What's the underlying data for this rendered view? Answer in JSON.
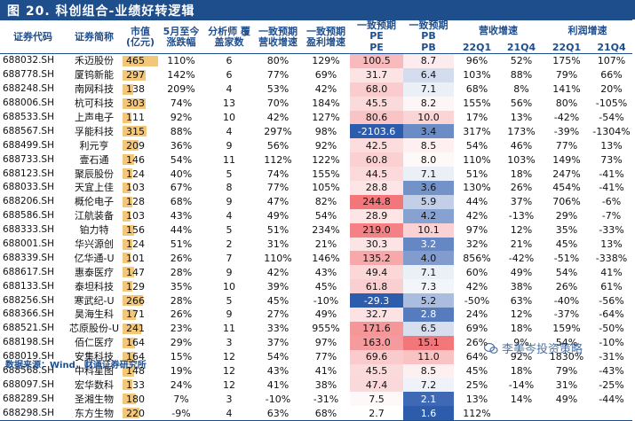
{
  "title": "图 20.  科创组合-业绩好转逻辑",
  "headers": {
    "code": "证券代码",
    "name": "证券简称",
    "mv": "市值 (亿元)",
    "may_chg": "5月至今 涨跌幅",
    "analysts": "分析师 覆盖家数",
    "rev_growth": "一致预期 营收增速",
    "profit_growth": "一致预期 盈利增速",
    "pe": "一致预期 PE",
    "pb": "一致预期 PB",
    "rev_group": "营收增速",
    "profit_group": "利润增速",
    "q1": "22Q1",
    "q4": "21Q4",
    "pe_short": "PE",
    "pb_short": "PB"
  },
  "rows": [
    {
      "code": "688032.SH",
      "name": "禾迈股份",
      "mv": "465",
      "chg": "110%",
      "an": "6",
      "rg": "80%",
      "pg": "129%",
      "pe": "100.5",
      "pb": "8.7",
      "rq1": "96%",
      "rq4": "52%",
      "pq1": "175%",
      "pq4": "107%"
    },
    {
      "code": "688778.SH",
      "name": "厦钨新能",
      "mv": "297",
      "chg": "142%",
      "an": "6",
      "rg": "77%",
      "pg": "69%",
      "pe": "31.7",
      "pb": "6.4",
      "rq1": "103%",
      "rq4": "88%",
      "pq1": "79%",
      "pq4": "66%"
    },
    {
      "code": "688248.SH",
      "name": "南网科技",
      "mv": "138",
      "chg": "209%",
      "an": "4",
      "rg": "53%",
      "pg": "42%",
      "pe": "68.0",
      "pb": "7.1",
      "rq1": "68%",
      "rq4": "8%",
      "pq1": "141%",
      "pq4": "20%"
    },
    {
      "code": "688006.SH",
      "name": "杭可科技",
      "mv": "303",
      "chg": "74%",
      "an": "13",
      "rg": "70%",
      "pg": "184%",
      "pe": "45.5",
      "pb": "8.2",
      "rq1": "155%",
      "rq4": "56%",
      "pq1": "80%",
      "pq4": "-105%"
    },
    {
      "code": "688533.SH",
      "name": "上声电子",
      "mv": "111",
      "chg": "92%",
      "an": "10",
      "rg": "42%",
      "pg": "127%",
      "pe": "80.6",
      "pb": "10.0",
      "rq1": "17%",
      "rq4": "13%",
      "pq1": "-42%",
      "pq4": "-54%"
    },
    {
      "code": "688567.SH",
      "name": "孚能科技",
      "mv": "315",
      "chg": "88%",
      "an": "4",
      "rg": "297%",
      "pg": "98%",
      "pe": "-2103.6",
      "pb": "3.4",
      "rq1": "317%",
      "rq4": "173%",
      "pq1": "-39%",
      "pq4": "-1304%"
    },
    {
      "code": "688499.SH",
      "name": "利元亨",
      "mv": "209",
      "chg": "36%",
      "an": "9",
      "rg": "56%",
      "pg": "92%",
      "pe": "42.5",
      "pb": "8.5",
      "rq1": "54%",
      "rq4": "46%",
      "pq1": "77%",
      "pq4": "13%"
    },
    {
      "code": "688733.SH",
      "name": "壹石通",
      "mv": "146",
      "chg": "54%",
      "an": "11",
      "rg": "112%",
      "pg": "122%",
      "pe": "60.8",
      "pb": "8.0",
      "rq1": "110%",
      "rq4": "103%",
      "pq1": "149%",
      "pq4": "73%"
    },
    {
      "code": "688123.SH",
      "name": "聚辰股份",
      "mv": "124",
      "chg": "40%",
      "an": "5",
      "rg": "74%",
      "pg": "155%",
      "pe": "44.5",
      "pb": "7.1",
      "rq1": "51%",
      "rq4": "18%",
      "pq1": "247%",
      "pq4": "-41%"
    },
    {
      "code": "688033.SH",
      "name": "天宜上佳",
      "mv": "103",
      "chg": "67%",
      "an": "8",
      "rg": "77%",
      "pg": "105%",
      "pe": "28.8",
      "pb": "3.6",
      "rq1": "130%",
      "rq4": "26%",
      "pq1": "454%",
      "pq4": "-41%"
    },
    {
      "code": "688206.SH",
      "name": "概伦电子",
      "mv": "128",
      "chg": "68%",
      "an": "9",
      "rg": "47%",
      "pg": "82%",
      "pe": "244.8",
      "pb": "5.9",
      "rq1": "44%",
      "rq4": "37%",
      "pq1": "706%",
      "pq4": "-6%"
    },
    {
      "code": "688586.SH",
      "name": "江航装备",
      "mv": "103",
      "chg": "43%",
      "an": "4",
      "rg": "49%",
      "pg": "54%",
      "pe": "28.9",
      "pb": "4.2",
      "rq1": "42%",
      "rq4": "-13%",
      "pq1": "29%",
      "pq4": "-7%"
    },
    {
      "code": "688333.SH",
      "name": "铂力特",
      "mv": "156",
      "chg": "44%",
      "an": "5",
      "rg": "51%",
      "pg": "234%",
      "pe": "219.0",
      "pb": "10.1",
      "rq1": "97%",
      "rq4": "12%",
      "pq1": "35%",
      "pq4": "-33%"
    },
    {
      "code": "688001.SH",
      "name": "华兴源创",
      "mv": "124",
      "chg": "51%",
      "an": "2",
      "rg": "31%",
      "pg": "21%",
      "pe": "30.3",
      "pb": "3.2",
      "rq1": "32%",
      "rq4": "21%",
      "pq1": "45%",
      "pq4": "13%"
    },
    {
      "code": "688339.SH",
      "name": "亿华通-U",
      "mv": "101",
      "chg": "26%",
      "an": "7",
      "rg": "110%",
      "pg": "146%",
      "pe": "135.2",
      "pb": "4.0",
      "rq1": "856%",
      "rq4": "-42%",
      "pq1": "-51%",
      "pq4": "-338%"
    },
    {
      "code": "688617.SH",
      "name": "惠泰医疗",
      "mv": "147",
      "chg": "28%",
      "an": "9",
      "rg": "42%",
      "pg": "43%",
      "pe": "49.4",
      "pb": "7.1",
      "rq1": "60%",
      "rq4": "49%",
      "pq1": "54%",
      "pq4": "41%"
    },
    {
      "code": "688133.SH",
      "name": "泰坦科技",
      "mv": "129",
      "chg": "35%",
      "an": "10",
      "rg": "39%",
      "pg": "45%",
      "pe": "61.8",
      "pb": "7.3",
      "rq1": "42%",
      "rq4": "38%",
      "pq1": "26%",
      "pq4": "61%"
    },
    {
      "code": "688256.SH",
      "name": "寒武纪-U",
      "mv": "266",
      "chg": "28%",
      "an": "5",
      "rg": "45%",
      "pg": "-10%",
      "pe": "-29.3",
      "pb": "5.2",
      "rq1": "-50%",
      "rq4": "63%",
      "pq1": "-40%",
      "pq4": "-56%"
    },
    {
      "code": "688366.SH",
      "name": "昊海生科",
      "mv": "171",
      "chg": "26%",
      "an": "9",
      "rg": "27%",
      "pg": "49%",
      "pe": "32.7",
      "pb": "2.8",
      "rq1": "24%",
      "rq4": "12%",
      "pq1": "-37%",
      "pq4": "-64%"
    },
    {
      "code": "688521.SH",
      "name": "芯原股份-U",
      "mv": "241",
      "chg": "23%",
      "an": "11",
      "rg": "33%",
      "pg": "955%",
      "pe": "171.6",
      "pb": "6.5",
      "rq1": "69%",
      "rq4": "18%",
      "pq1": "159%",
      "pq4": "-50%"
    },
    {
      "code": "688198.SH",
      "name": "佰仁医疗",
      "mv": "164",
      "chg": "29%",
      "an": "3",
      "rg": "37%",
      "pg": "97%",
      "pe": "163.0",
      "pb": "15.1",
      "rq1": "26%",
      "rq4": "9%",
      "pq1": "54%",
      "pq4": "-10%"
    },
    {
      "code": "688019.SH",
      "name": "安集科技",
      "mv": "164",
      "chg": "15%",
      "an": "12",
      "rg": "54%",
      "pg": "77%",
      "pe": "69.6",
      "pb": "11.0",
      "rq1": "64%",
      "rq4": "92%",
      "pq1": "1830%",
      "pq4": "-31%"
    },
    {
      "code": "688568.SH",
      "name": "中科星图",
      "mv": "148",
      "chg": "19%",
      "an": "12",
      "rg": "43%",
      "pg": "41%",
      "pe": "45.5",
      "pb": "8.5",
      "rq1": "45%",
      "rq4": "18%",
      "pq1": "79%",
      "pq4": "-43%"
    },
    {
      "code": "688097.SH",
      "name": "宏华数科",
      "mv": "133",
      "chg": "24%",
      "an": "12",
      "rg": "41%",
      "pg": "38%",
      "pe": "47.4",
      "pb": "7.2",
      "rq1": "25%",
      "rq4": "-14%",
      "pq1": "31%",
      "pq4": "-25%"
    },
    {
      "code": "688289.SH",
      "name": "圣湘生物",
      "mv": "180",
      "chg": "7%",
      "an": "3",
      "rg": "-10%",
      "pg": "-31%",
      "pe": "7.5",
      "pb": "2.1",
      "rq1": "13%",
      "rq4": "14%",
      "pq1": "49%",
      "pq4": "-44%"
    },
    {
      "code": "688298.SH",
      "name": "东方生物",
      "mv": "220",
      "chg": "-9%",
      "an": "4",
      "rg": "63%",
      "pg": "68%",
      "pe": "2.7",
      "pb": "1.6",
      "rq1": "112%",
      "rq4": "",
      "pq1": "",
      "pq4": ""
    }
  ],
  "footer": "数据来源：Wind，财通证券研究所",
  "watermark": "李美岑投资策略",
  "colors": {
    "title_bg": "#1f4e8c",
    "header_text": "#1f4e8c",
    "mv_bar": "#f3c77a",
    "pe_high": "#f2767a",
    "pe_low": "#ffffff",
    "pb_high": "#f2767a",
    "pb_low": "#2e5cad"
  },
  "scales": {
    "mv_max": 465,
    "pe_min": 2.7,
    "pe_max": 244.8,
    "pb_min": 1.6,
    "pb_max": 15.1
  }
}
